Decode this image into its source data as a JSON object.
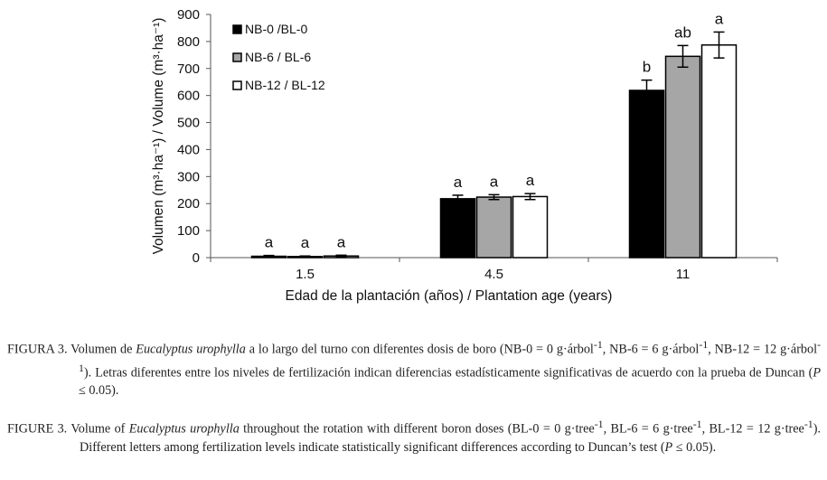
{
  "chart_data": {
    "type": "bar",
    "categories": [
      "1.5",
      "4.5",
      "11"
    ],
    "series": [
      {
        "name": "NB-0 /BL-0",
        "color": "#000000",
        "values": [
          5,
          218,
          619
        ],
        "errors": [
          3,
          13,
          38
        ],
        "letters": [
          "a",
          "a",
          "b"
        ]
      },
      {
        "name": "NB-6 / BL-6",
        "color": "#a6a6a6",
        "values": [
          4,
          224,
          745
        ],
        "errors": [
          2,
          9,
          40
        ],
        "letters": [
          "a",
          "a",
          "ab"
        ]
      },
      {
        "name": "NB-12 / BL-12",
        "color": "#ffffff",
        "values": [
          6,
          226,
          787
        ],
        "errors": [
          3,
          11,
          48
        ],
        "letters": [
          "a",
          "a",
          "a"
        ]
      }
    ],
    "xlabel": "Edad de la plantación (años) / Plantation age (years)",
    "ylabel": "Volumen (m³·ha⁻¹) / Volume (m³·ha⁻¹)",
    "ylim": [
      0,
      900
    ],
    "yticks": [
      0,
      100,
      200,
      300,
      400,
      500,
      600,
      700,
      800,
      900
    ],
    "legend_position": "top-left"
  },
  "caption_es": {
    "label": "FIGURA 3.",
    "t1": " Volumen de ",
    "species": "Eucalyptus urophylla",
    "t2": " a lo largo del turno con diferentes dosis de boro (NB-0 = 0 g·árbol",
    "sup1": "-1",
    "t3": ", NB-6 = 6 g·árbol",
    "sup2": "-1",
    "t4": ", NB-12 = 12 g·árbol",
    "sup3": "-1",
    "t5": "). Letras diferentes entre los niveles de fertilización indican diferencias estadísticamente significativas de acuerdo con la prueba de Duncan (",
    "p": "P",
    "t6": " ≤ 0.05)."
  },
  "caption_en": {
    "label": "FIGURE 3.",
    "t1": " Volume of ",
    "species": "Eucalyptus urophylla",
    "t2": " throughout the rotation with different boron doses (BL-0 = 0 g·tree",
    "sup1": "-1",
    "t3": ", BL-6 = 6 g·tree",
    "sup2": "-1",
    "t4": ", BL-12 = 12 g·tree",
    "sup3": "-1",
    "t5": "). Different letters among fertilization levels indicate statistically significant differences according to Duncan’s test (",
    "p": "P",
    "t6": " ≤ 0.05)."
  }
}
